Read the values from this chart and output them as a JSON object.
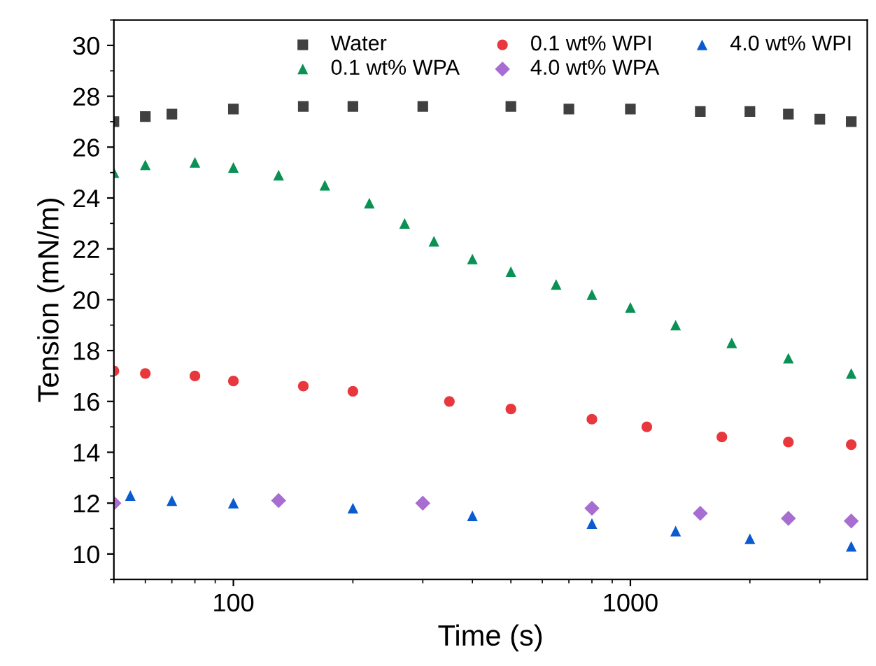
{
  "chart_data": {
    "type": "scatter",
    "xlabel": "Time (s)",
    "ylabel": "Tension (mN/m)",
    "log": "x",
    "xlim": [
      50,
      3950
    ],
    "xticks": [
      100,
      1000
    ],
    "ylim": [
      9,
      31
    ],
    "yticks": [
      10,
      12,
      14,
      16,
      18,
      20,
      22,
      24,
      26,
      28,
      30
    ],
    "grid": false,
    "legend": "top right",
    "series": [
      {
        "name": "Water",
        "color": "#404040",
        "marker": "square",
        "x": [
          50,
          60,
          70,
          100,
          150,
          200,
          300,
          500,
          700,
          1000,
          1500,
          2000,
          2500,
          3000,
          3600
        ],
        "values": [
          27.0,
          27.2,
          27.3,
          27.5,
          27.6,
          27.6,
          27.6,
          27.6,
          27.5,
          27.5,
          27.4,
          27.4,
          27.3,
          27.1,
          27.0
        ]
      },
      {
        "name": "0.1 wt% WPI",
        "color": "#e8383d",
        "marker": "circle",
        "x": [
          50,
          60,
          80,
          100,
          150,
          200,
          350,
          500,
          800,
          1100,
          1700,
          2500,
          3600
        ],
        "values": [
          17.2,
          17.1,
          17.0,
          16.8,
          16.6,
          16.4,
          16.0,
          15.7,
          15.3,
          15.0,
          14.6,
          14.4,
          14.3
        ]
      },
      {
        "name": "4.0 wt% WPI",
        "color": "#0a5bd0",
        "marker": "triangle",
        "x": [
          55,
          70,
          100,
          200,
          400,
          800,
          1300,
          2000,
          3600
        ],
        "values": [
          12.3,
          12.1,
          12.0,
          11.8,
          11.5,
          11.2,
          10.9,
          10.6,
          10.3
        ]
      },
      {
        "name": "0.1 wt% WPA",
        "color": "#0a9154",
        "marker": "triangle",
        "x": [
          50,
          60,
          80,
          100,
          130,
          170,
          220,
          270,
          320,
          400,
          500,
          650,
          800,
          1000,
          1300,
          1800,
          2500,
          3600
        ],
        "values": [
          25.0,
          25.3,
          25.4,
          25.2,
          24.9,
          24.5,
          23.8,
          23.0,
          22.3,
          21.6,
          21.1,
          20.6,
          20.2,
          19.7,
          19.0,
          18.3,
          17.7,
          17.1
        ]
      },
      {
        "name": "4.0 wt% WPA",
        "color": "#a86dd0",
        "marker": "diamond",
        "x": [
          50,
          130,
          300,
          800,
          1500,
          2500,
          3600
        ],
        "values": [
          12.0,
          12.1,
          12.0,
          11.8,
          11.6,
          11.4,
          11.3
        ]
      }
    ]
  }
}
